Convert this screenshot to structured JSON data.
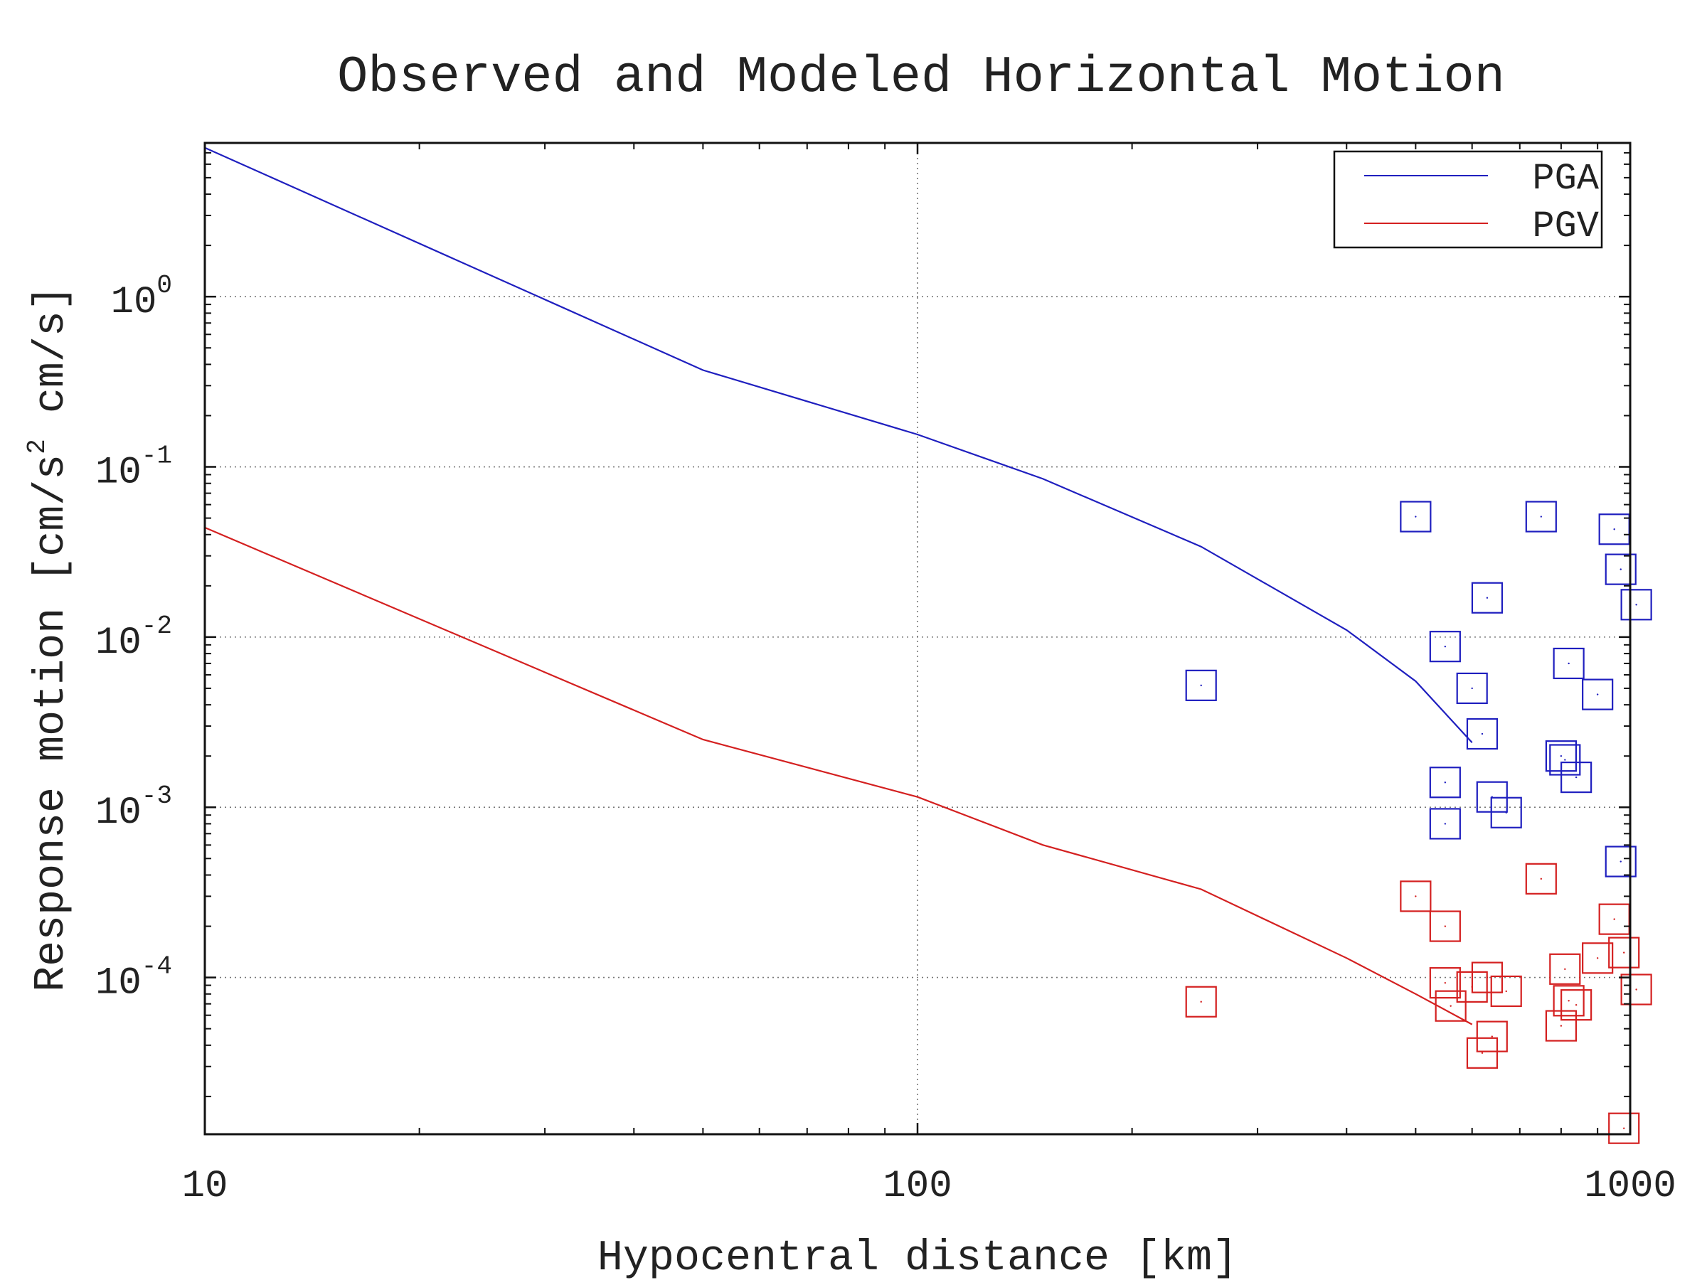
{
  "chart_data": {
    "type": "scatter",
    "title": "Observed and Modeled Horizontal Motion",
    "xlabel": "Hypocentral distance [km]",
    "ylabel_parts": {
      "before": "Response motion  [cm/s",
      "sup": "2",
      "after": "  cm/s]"
    },
    "x_scale": "log",
    "y_scale": "log",
    "xlim": [
      10,
      1000
    ],
    "ylim": [
      1.2e-05,
      8
    ],
    "x_ticks": [
      {
        "value": 10,
        "label": "10"
      },
      {
        "value": 100,
        "label": "100"
      },
      {
        "value": 1000,
        "label": "1000"
      }
    ],
    "y_ticks": [
      {
        "value": 1,
        "base": "10",
        "exp": "0"
      },
      {
        "value": 0.1,
        "base": "10",
        "exp": "-1"
      },
      {
        "value": 0.01,
        "base": "10",
        "exp": "-2"
      },
      {
        "value": 0.001,
        "base": "10",
        "exp": "-3"
      },
      {
        "value": 0.0001,
        "base": "10",
        "exp": "-4"
      }
    ],
    "grid": true,
    "legend_position": "top-right",
    "series": [
      {
        "name": "PGA",
        "color": "#1f1fbf",
        "model_curve": [
          [
            10,
            7.5
          ],
          [
            50,
            0.37
          ],
          [
            100,
            0.155
          ],
          [
            150,
            0.085
          ],
          [
            250,
            0.034
          ],
          [
            400,
            0.011
          ],
          [
            500,
            0.0055
          ],
          [
            600,
            0.0024
          ]
        ],
        "observations": [
          [
            250,
            0.0052
          ],
          [
            500,
            0.051
          ],
          [
            550,
            0.0088
          ],
          [
            550,
            0.0014
          ],
          [
            550,
            0.0008
          ],
          [
            600,
            0.005
          ],
          [
            620,
            0.0027
          ],
          [
            630,
            0.017
          ],
          [
            640,
            0.00115
          ],
          [
            670,
            0.00093
          ],
          [
            750,
            0.051
          ],
          [
            800,
            0.002
          ],
          [
            810,
            0.0019
          ],
          [
            820,
            0.007
          ],
          [
            840,
            0.0015
          ],
          [
            900,
            0.0046
          ],
          [
            950,
            0.043
          ],
          [
            970,
            0.025
          ],
          [
            970,
            0.00048
          ],
          [
            1020,
            0.0155
          ]
        ]
      },
      {
        "name": "PGV",
        "color": "#d42020",
        "model_curve": [
          [
            10,
            0.044
          ],
          [
            50,
            0.0025
          ],
          [
            100,
            0.00115
          ],
          [
            150,
            0.0006
          ],
          [
            250,
            0.00033
          ],
          [
            400,
            0.00013
          ],
          [
            500,
            8e-05
          ],
          [
            600,
            5.3e-05
          ]
        ],
        "observations": [
          [
            250,
            7.2e-05
          ],
          [
            500,
            0.0003
          ],
          [
            550,
            0.0002
          ],
          [
            550,
            9.3e-05
          ],
          [
            560,
            6.8e-05
          ],
          [
            600,
            8.8e-05
          ],
          [
            620,
            3.6e-05
          ],
          [
            630,
            0.0001
          ],
          [
            640,
            4.5e-05
          ],
          [
            670,
            8.3e-05
          ],
          [
            750,
            0.00038
          ],
          [
            800,
            5.2e-05
          ],
          [
            810,
            0.000112
          ],
          [
            820,
            7.3e-05
          ],
          [
            840,
            6.9e-05
          ],
          [
            900,
            0.00013
          ],
          [
            950,
            0.00022
          ],
          [
            980,
            0.00014
          ],
          [
            980,
            1.3e-05
          ],
          [
            1020,
            8.5e-05
          ]
        ]
      }
    ]
  }
}
